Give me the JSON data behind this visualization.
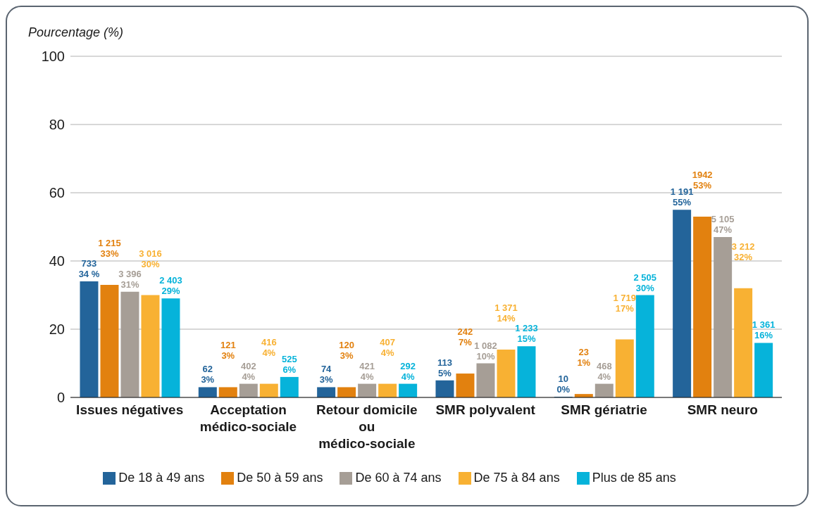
{
  "chart_data": {
    "type": "bar",
    "ylabel": "Pourcentage (%)",
    "categories": [
      "Issues négatives",
      "Acceptation médico-sociale",
      "Retour domicile ou médico-sociale",
      "SMR polyvalent",
      "SMR gériatrie",
      "SMR neuro"
    ],
    "ylim": [
      0,
      100
    ],
    "yticks": [
      0,
      20,
      40,
      60,
      80,
      100
    ],
    "grid": "y",
    "legend": "bottom",
    "series": [
      {
        "name": "De 18 à 49 ans",
        "color": "#23649a",
        "values": [
          34,
          3,
          3,
          5,
          0,
          55
        ],
        "value_labels": [
          "733\n34 %",
          "62\n3%",
          "74\n3%",
          "113\n5%",
          "10\n0%",
          "1 191\n55%"
        ]
      },
      {
        "name": "De 50 à 59 ans",
        "color": "#e2810f",
        "values": [
          33,
          3,
          3,
          7,
          1,
          53
        ],
        "value_labels": [
          "1 215\n33%",
          "121\n3%",
          "120\n3%",
          "242\n7%",
          "23\n1%",
          "1942\n53%"
        ]
      },
      {
        "name": "De 60 à 74 ans",
        "color": "#a69e96",
        "values": [
          31,
          4,
          4,
          10,
          4,
          47
        ],
        "value_labels": [
          "3 396\n31%",
          "402\n4%",
          "421\n4%",
          "1 082\n10%",
          "468\n4%",
          "5 105\n47%"
        ]
      },
      {
        "name": "De 75 à 84 ans",
        "color": "#f8b133",
        "values": [
          30,
          4,
          4,
          14,
          17,
          32
        ],
        "value_labels": [
          "3 016\n30%",
          "416\n4%",
          "407\n4%",
          "1 371\n14%",
          "1 719\n17%",
          "3 212\n32%"
        ]
      },
      {
        "name": "Plus de 85 ans",
        "color": "#06b3da",
        "values": [
          29,
          6,
          4,
          15,
          30,
          16
        ],
        "value_labels": [
          "2 403\n29%",
          "525\n6%",
          "292\n4%",
          "1 233\n15%",
          "2 505\n30%",
          "1 361\n16%"
        ]
      }
    ]
  }
}
